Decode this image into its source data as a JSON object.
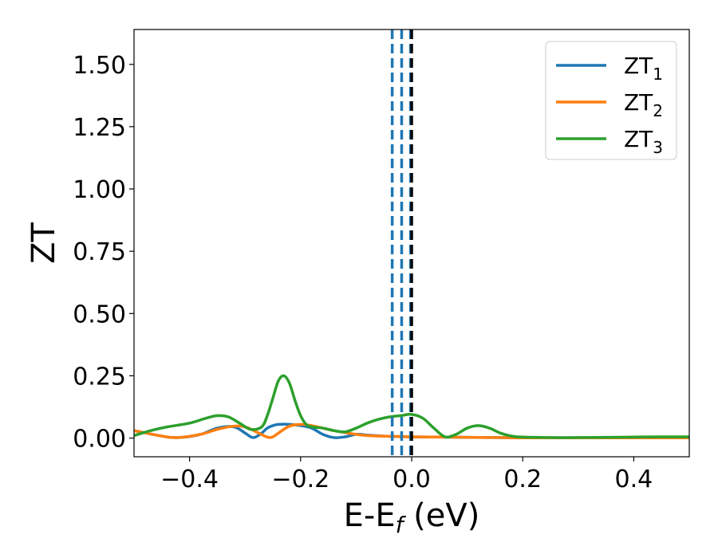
{
  "chart_data": {
    "type": "line",
    "xlabel": {
      "main": "E-E",
      "sub": "f",
      "suffix": " (eV)"
    },
    "ylabel": "ZT",
    "xlim": [
      -0.5,
      0.5
    ],
    "ylim": [
      -0.075,
      1.64
    ],
    "xticks": [
      -0.4,
      -0.2,
      0.0,
      0.2,
      0.4
    ],
    "xtick_labels": [
      "−0.4",
      "−0.2",
      "0.0",
      "0.2",
      "0.4"
    ],
    "yticks": [
      0.0,
      0.25,
      0.5,
      0.75,
      1.0,
      1.25,
      1.5
    ],
    "ytick_labels": [
      "0.00",
      "0.25",
      "0.50",
      "0.75",
      "1.00",
      "1.25",
      "1.50"
    ],
    "grid": false,
    "legend_position": "top-right",
    "series": [
      {
        "name": "ZT",
        "sub": "1",
        "color": "#1f77b4",
        "x": [
          -0.5,
          -0.45,
          -0.42,
          -0.38,
          -0.35,
          -0.32,
          -0.3,
          -0.29,
          -0.285,
          -0.28,
          -0.27,
          -0.26,
          -0.25,
          -0.24,
          -0.22,
          -0.2,
          -0.18,
          -0.16,
          -0.14,
          -0.12,
          -0.1,
          -0.08,
          -0.06,
          -0.04,
          -0.02,
          0.0,
          0.05,
          0.1,
          0.15,
          0.2,
          0.25,
          0.3,
          0.35,
          0.4,
          0.45,
          0.5
        ],
        "y": [
          0.03,
          0.008,
          0.002,
          0.015,
          0.04,
          0.045,
          0.02,
          0.005,
          0.002,
          0.005,
          0.02,
          0.04,
          0.05,
          0.055,
          0.055,
          0.05,
          0.04,
          0.015,
          0.002,
          0.005,
          0.015,
          0.012,
          0.009,
          0.007,
          0.006,
          0.005,
          0.004,
          0.003,
          0.002,
          0.001,
          0.001,
          0.001,
          0.001,
          0.001,
          0.001,
          0.001
        ]
      },
      {
        "name": "ZT",
        "sub": "2",
        "color": "#ff7f0e",
        "x": [
          -0.5,
          -0.45,
          -0.42,
          -0.38,
          -0.35,
          -0.32,
          -0.3,
          -0.28,
          -0.26,
          -0.25,
          -0.24,
          -0.22,
          -0.2,
          -0.18,
          -0.16,
          -0.14,
          -0.12,
          -0.1,
          -0.08,
          -0.06,
          -0.04,
          -0.02,
          0.0,
          0.05,
          0.1,
          0.15,
          0.2,
          0.25,
          0.3,
          0.35,
          0.4,
          0.45,
          0.5
        ],
        "y": [
          0.03,
          0.008,
          0.002,
          0.015,
          0.035,
          0.048,
          0.045,
          0.025,
          0.004,
          0.005,
          0.02,
          0.048,
          0.055,
          0.05,
          0.04,
          0.03,
          0.022,
          0.015,
          0.01,
          0.008,
          0.007,
          0.006,
          0.005,
          0.004,
          0.003,
          0.002,
          0.001,
          0.001,
          0.001,
          0.001,
          0.001,
          0.001,
          0.001
        ]
      },
      {
        "name": "ZT",
        "sub": "3",
        "color": "#2ca02c",
        "x": [
          -0.5,
          -0.47,
          -0.44,
          -0.4,
          -0.37,
          -0.35,
          -0.33,
          -0.31,
          -0.29,
          -0.27,
          -0.26,
          -0.25,
          -0.24,
          -0.23,
          -0.22,
          -0.21,
          -0.2,
          -0.19,
          -0.18,
          -0.16,
          -0.14,
          -0.12,
          -0.1,
          -0.08,
          -0.06,
          -0.04,
          -0.02,
          0.0,
          0.02,
          0.04,
          0.06,
          0.08,
          0.1,
          0.12,
          0.14,
          0.16,
          0.18,
          0.2,
          0.25,
          0.3,
          0.35,
          0.4,
          0.45,
          0.5
        ],
        "y": [
          0.01,
          0.03,
          0.045,
          0.06,
          0.08,
          0.09,
          0.085,
          0.06,
          0.035,
          0.045,
          0.09,
          0.16,
          0.23,
          0.25,
          0.22,
          0.15,
          0.09,
          0.055,
          0.045,
          0.04,
          0.03,
          0.025,
          0.04,
          0.06,
          0.075,
          0.085,
          0.09,
          0.095,
          0.08,
          0.04,
          0.005,
          0.015,
          0.04,
          0.05,
          0.04,
          0.02,
          0.008,
          0.004,
          0.002,
          0.002,
          0.003,
          0.004,
          0.005,
          0.005
        ]
      }
    ],
    "vlines": [
      {
        "x": -0.035,
        "color": "#1f77b4",
        "style": "dashed"
      },
      {
        "x": -0.018,
        "color": "#1f77b4",
        "style": "dashed"
      },
      {
        "x": -0.002,
        "color": "#1f77b4",
        "style": "dashed"
      },
      {
        "x": 0.0,
        "color": "#000000",
        "style": "dashed"
      }
    ]
  }
}
